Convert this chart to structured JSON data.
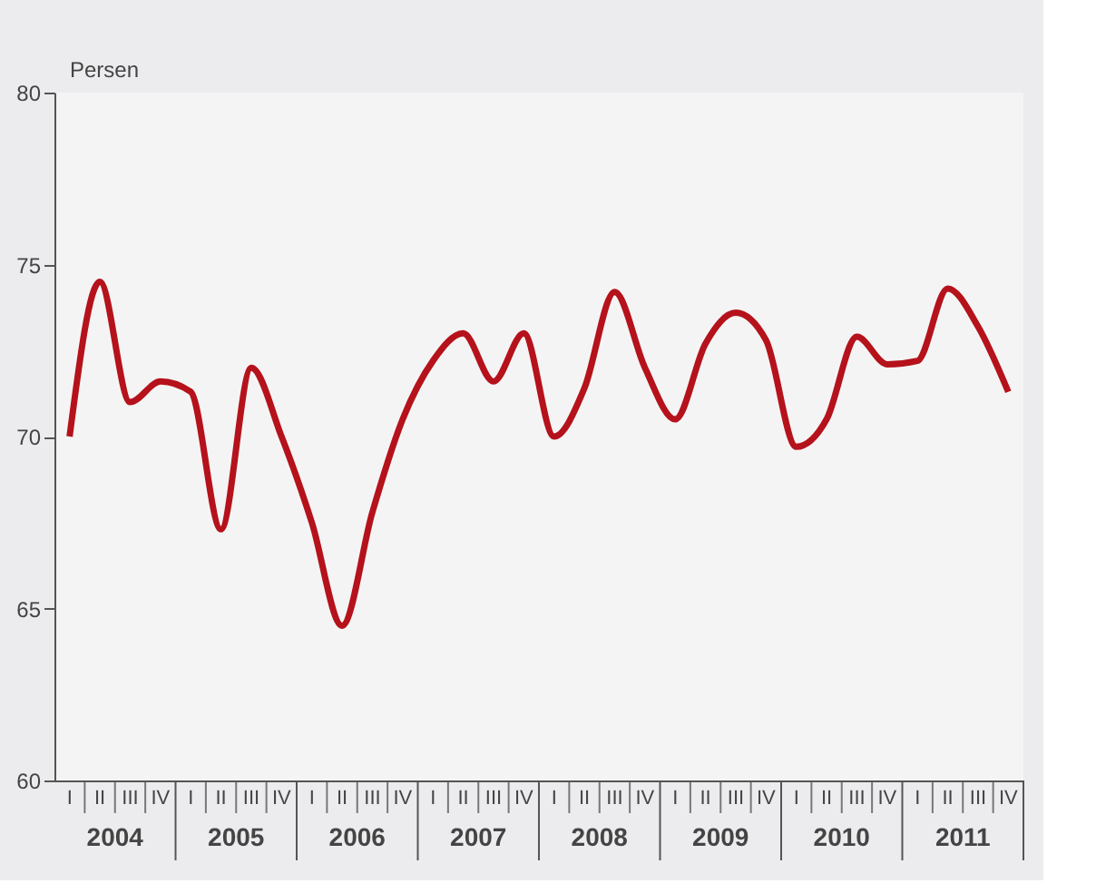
{
  "chart_data": {
    "type": "line",
    "ylabel": "Persen",
    "categories": [
      "I",
      "II",
      "III",
      "IV",
      "I",
      "II",
      "III",
      "IV",
      "I",
      "II",
      "III",
      "IV",
      "I",
      "II",
      "III",
      "IV",
      "I",
      "II",
      "III",
      "IV",
      "I",
      "II",
      "III",
      "IV",
      "I",
      "II",
      "III",
      "IV",
      "I",
      "II",
      "III",
      "IV"
    ],
    "annotations": [
      "2004",
      "2005",
      "2006",
      "2007",
      "2008",
      "2009",
      "2010",
      "2011"
    ],
    "series": [
      {
        "color": "#b5121b",
        "values": [
          70.0,
          74.5,
          71.0,
          71.6,
          71.3,
          67.3,
          72.0,
          70.0,
          67.5,
          64.5,
          67.8,
          70.5,
          72.2,
          73.0,
          71.6,
          73.0,
          70.0,
          71.4,
          74.2,
          72.0,
          70.5,
          72.7,
          73.6,
          72.8,
          69.7,
          70.5,
          72.9,
          72.1,
          72.2,
          74.3,
          73.2,
          71.3
        ]
      }
    ],
    "ylim": [
      60,
      80
    ],
    "yticks": [
      60,
      65,
      70,
      75,
      80
    ],
    "grid": false,
    "marker": "none",
    "line_style": "solid"
  }
}
